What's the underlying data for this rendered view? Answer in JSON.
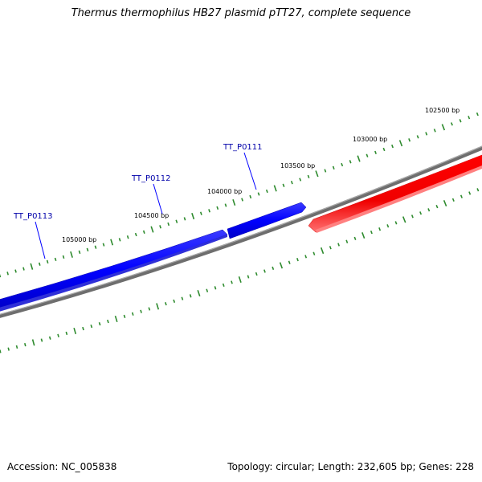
{
  "title": "Thermus thermophilus HB27 plasmid pTT27, complete sequence",
  "footer": {
    "accession": "Accession: NC_005838",
    "summary": "Topology: circular; Length: 232,605 bp; Genes: 228"
  },
  "colors": {
    "forward_strand": "#0000ff",
    "reverse_strand": "#ff0000",
    "backbone": "#808080",
    "tick": "#2e8b2e",
    "gene_label": "#0000aa"
  },
  "scale_labels": [
    "102500 bp",
    "103000 bp",
    "103500 bp",
    "104000 bp",
    "104500 bp",
    "105000 bp"
  ],
  "genes": [
    {
      "label": "TT_P0111",
      "strand": "forward"
    },
    {
      "label": "TT_P0112",
      "strand": "forward"
    },
    {
      "label": "TT_P0113",
      "strand": "forward"
    },
    {
      "label": "",
      "strand": "reverse"
    }
  ]
}
